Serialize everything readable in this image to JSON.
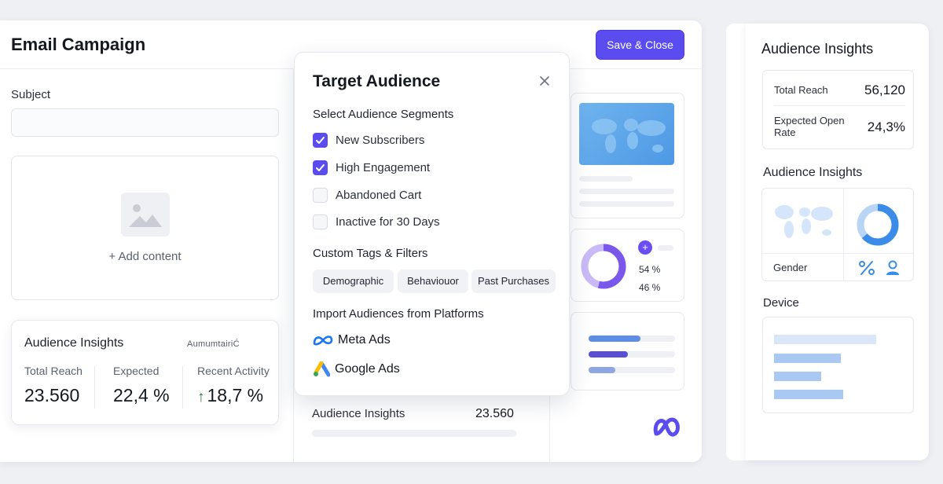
{
  "header": {
    "title": "Email Campaign",
    "save_label": "Save & Close"
  },
  "form": {
    "subject_label": "Subject",
    "subject_value": "",
    "add_content_label": "+ Add content"
  },
  "left_insights": {
    "title": "Audience Insights",
    "brand": "AumumtairiĆ",
    "stats": [
      {
        "label": "Total Reach",
        "value": "23.560"
      },
      {
        "label": "Expected",
        "value": "22,4 %"
      },
      {
        "label": "Recent Activity",
        "value": "18,7 %"
      }
    ]
  },
  "mid_insights": {
    "label": "Audience Insights",
    "value": "23.560"
  },
  "popover": {
    "title": "Target Audience",
    "segments_title": "Select Audience Segments",
    "segments": [
      {
        "label": "New Subscribers",
        "checked": true
      },
      {
        "label": "High Engagement",
        "checked": true
      },
      {
        "label": "Abandoned Cart",
        "checked": false
      },
      {
        "label": "Inactive for 30 Days",
        "checked": false
      }
    ],
    "tags_title": "Custom Tags & Filters",
    "tags": [
      "Demographic",
      "Behaviouor",
      "Past Purchases"
    ],
    "import_title": "Import Audiences from Platforms",
    "platforms": [
      "Meta Ads",
      "Google Ads"
    ]
  },
  "preview": {
    "donut_pct_1": "54 %",
    "donut_pct_2": "46 %",
    "plus_symbol": "+"
  },
  "right_panel": {
    "title": "Audience Insights",
    "reach_label": "Total Reach",
    "reach_value": "56,120",
    "open_rate_label": "Expected Open Rate",
    "open_rate_value": "24,3%",
    "sub_title": "Audience Insights",
    "gender_label": "Gender",
    "device_title": "Device"
  },
  "icons": {
    "accent": "#5b4cf0",
    "blue": "#3b8be8",
    "checkbox_checked": "check-icon",
    "close": "close-icon",
    "image": "image-placeholder-icon",
    "meta": "meta-logo-icon",
    "google_ads": "google-ads-logo-icon",
    "percent": "percent-icon",
    "user": "user-icon"
  }
}
